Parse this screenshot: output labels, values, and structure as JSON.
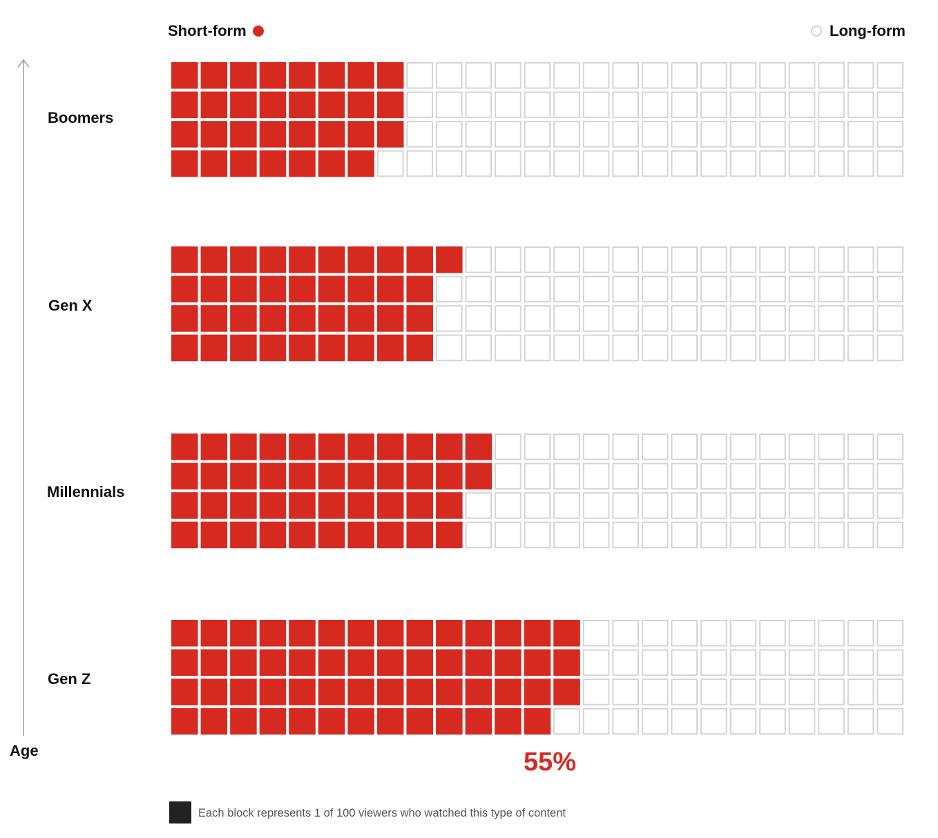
{
  "chart_data": {
    "type": "waffle",
    "grid": {
      "columns": 25,
      "rows": 4,
      "cells_per_group": 100
    },
    "legend": [
      {
        "label": "Short-form",
        "color": "#d62a20",
        "marker": "filled-circle"
      },
      {
        "label": "Long-form",
        "color": "#c8c8c8",
        "marker": "hollow-circle"
      }
    ],
    "axis": {
      "label": "Age",
      "direction": "up-arrow"
    },
    "groups": [
      {
        "name": "Boomers",
        "short_form": 31
      },
      {
        "name": "Gen X",
        "short_form": 37
      },
      {
        "name": "Millennials",
        "short_form": 42
      },
      {
        "name": "Gen Z",
        "short_form": 55
      }
    ],
    "annotation": {
      "text": "55%",
      "group": "Gen Z",
      "color": "#d62a20"
    },
    "note": {
      "text": "Each block represents 1 of 100 viewers who watched this type of content",
      "swatch_color": "#222222"
    },
    "colors": {
      "filled": "#d62a20",
      "empty_stroke": "#d4d4d4",
      "axis": "#9a9a9a"
    }
  }
}
